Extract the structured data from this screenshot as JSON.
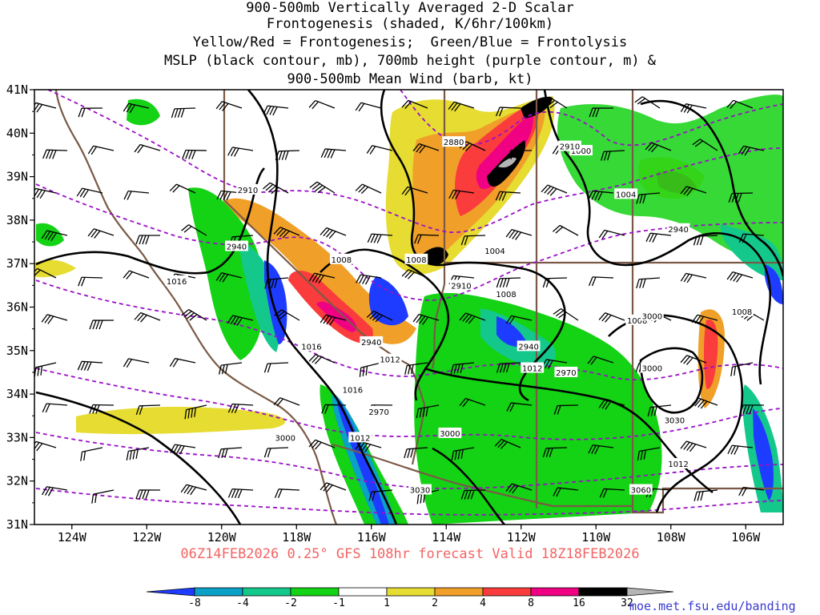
{
  "title": {
    "line1": "900-500mb Vertically Averaged 2-D Scalar",
    "line2": "Frontogenesis (shaded, K/6hr/100km)",
    "line3": "Yellow/Red = Frontogenesis;  Green/Blue = Frontolysis",
    "line4": "MSLP (black contour, mb), 700mb height (purple contour, m) &",
    "line5": "900-500mb Mean Wind (barb, kt)"
  },
  "axes": {
    "lat_labels": [
      "41N",
      "40N",
      "39N",
      "38N",
      "37N",
      "36N",
      "35N",
      "34N",
      "33N",
      "32N",
      "31N"
    ],
    "lon_labels": [
      "124W",
      "122W",
      "120W",
      "118W",
      "116W",
      "114W",
      "112W",
      "110W",
      "108W",
      "106W"
    ],
    "lat_range": [
      31,
      41
    ],
    "lon_range": [
      -125,
      -105
    ]
  },
  "contours": {
    "mslp": [
      {
        "label": "1016",
        "lon": -121.2,
        "lat": 36.6
      },
      {
        "label": "1016",
        "lon": -117.6,
        "lat": 35.1
      },
      {
        "label": "1016",
        "lon": -116.5,
        "lat": 34.1
      },
      {
        "label": "1012",
        "lon": -116.3,
        "lat": 33.0
      },
      {
        "label": "1012",
        "lon": -115.5,
        "lat": 34.8
      },
      {
        "label": "1012",
        "lon": -111.7,
        "lat": 34.6
      },
      {
        "label": "1012",
        "lon": -107.8,
        "lat": 32.4
      },
      {
        "label": "1008",
        "lon": -116.8,
        "lat": 37.1
      },
      {
        "label": "1008",
        "lon": -114.8,
        "lat": 37.1
      },
      {
        "label": "1008",
        "lon": -112.4,
        "lat": 36.3
      },
      {
        "label": "1008",
        "lon": -108.9,
        "lat": 35.7
      },
      {
        "label": "1008",
        "lon": -106.1,
        "lat": 35.9
      },
      {
        "label": "1004",
        "lon": -112.7,
        "lat": 37.3
      },
      {
        "label": "1004",
        "lon": -109.2,
        "lat": 38.6
      },
      {
        "label": "1000",
        "lon": -110.4,
        "lat": 39.6
      }
    ],
    "height_700mb": [
      {
        "label": "2880",
        "lon": -113.8,
        "lat": 39.8
      },
      {
        "label": "2910",
        "lon": -119.3,
        "lat": 38.7
      },
      {
        "label": "2910",
        "lon": -113.6,
        "lat": 36.5
      },
      {
        "label": "2910",
        "lon": -110.7,
        "lat": 39.7
      },
      {
        "label": "2940",
        "lon": -119.6,
        "lat": 37.4
      },
      {
        "label": "2940",
        "lon": -116.0,
        "lat": 35.2
      },
      {
        "label": "2940",
        "lon": -111.8,
        "lat": 35.1
      },
      {
        "label": "2940",
        "lon": -107.8,
        "lat": 37.8
      },
      {
        "label": "2970",
        "lon": -115.8,
        "lat": 33.6
      },
      {
        "label": "2970",
        "lon": -110.8,
        "lat": 34.5
      },
      {
        "label": "3000",
        "lon": -118.3,
        "lat": 33.0
      },
      {
        "label": "3000",
        "lon": -113.9,
        "lat": 33.1
      },
      {
        "label": "3000",
        "lon": -108.5,
        "lat": 35.8
      },
      {
        "label": "3000",
        "lon": -108.5,
        "lat": 34.6
      },
      {
        "label": "3030",
        "lon": -114.7,
        "lat": 31.8
      },
      {
        "label": "3030",
        "lon": -107.9,
        "lat": 33.4
      },
      {
        "label": "3060",
        "lon": -108.8,
        "lat": 31.8
      }
    ]
  },
  "colorbar": {
    "labels": [
      "-8",
      "-4",
      "-2",
      "-1",
      "1",
      "2",
      "4",
      "8",
      "16",
      "32"
    ],
    "colors": [
      "#1e3cff",
      "#0aa0c8",
      "#14c88c",
      "#14d214",
      "#ffffff",
      "#e6dc32",
      "#f0a028",
      "#fa3c3c",
      "#f00082",
      "#000000",
      "#b4b4b4"
    ]
  },
  "footer": "06Z14FEB2026 0.25° GFS 108hr forecast Valid 18Z18FEB2026",
  "credit": "moe.met.fsu.edu/banding"
}
